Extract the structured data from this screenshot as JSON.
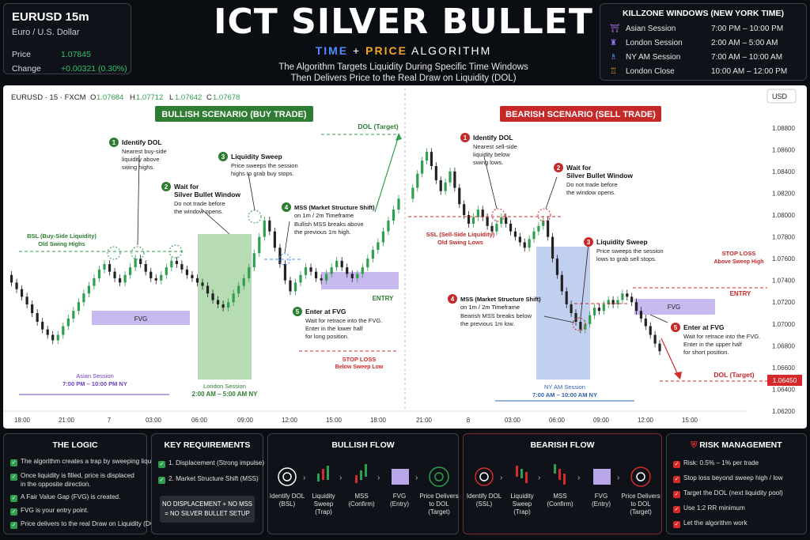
{
  "ticker": {
    "symbol": "EURUSD 15m",
    "name": "Euro / U.S. Dollar",
    "price_label": "Price",
    "price": "1.07845",
    "change_label": "Change",
    "change": "+0.00321 (0.30%)"
  },
  "title": "ICT SILVER BULLET",
  "tagline": {
    "a": "TIME",
    "b": "+",
    "c": "PRICE",
    "d": "ALGORITHM"
  },
  "subline": [
    "The Algorithm Targets Liquidity During Specific Time Windows",
    "Then Delivers Price to the Real Draw on Liquidity (DOL)"
  ],
  "killzones": {
    "title": "KILLZONE WINDOWS (NEW YORK TIME)",
    "items": [
      {
        "name": "Asian Session",
        "time": "7:00 PM – 10:00 PM",
        "icon": "pagoda-icon",
        "color": "#b57cff"
      },
      {
        "name": "London Session",
        "time": "2:00 AM – 5:00 AM",
        "icon": "bigben-icon",
        "color": "#9a7cff"
      },
      {
        "name": "NY AM Session",
        "time": "7:00 AM – 10:00 AM",
        "icon": "liberty-icon",
        "color": "#6aa8ff"
      },
      {
        "name": "London Close",
        "time": "10:00 AM – 12:00 PM",
        "icon": "bridge-icon",
        "color": "#f5a623"
      }
    ]
  },
  "chart_header": {
    "symbol": "EURUSD · 15 · FXCM",
    "o_label": "O",
    "o": "1.07684",
    "h_label": "H",
    "h": "1.07712",
    "l_label": "L",
    "l": "1.07642",
    "c_label": "C",
    "c": "1.07678",
    "currency": "USD"
  },
  "chart_data": {
    "type": "candlestick",
    "y_ticks": [
      "1.08800",
      "1.08600",
      "1.08400",
      "1.08200",
      "1.08000",
      "1.07800",
      "1.07600",
      "1.07400",
      "1.07200",
      "1.07000",
      "1.06800",
      "1.06600",
      "1.06400",
      "1.06200"
    ],
    "x_ticks": [
      "18:00",
      "21:00",
      "7",
      "03:00",
      "06:00",
      "09:00",
      "12:00",
      "15:00",
      "18:00",
      "21:00",
      "8",
      "03:00",
      "06:00",
      "09:00",
      "12:00",
      "15:00"
    ],
    "price_tag": "1.06450",
    "ylim": [
      1.062,
      1.089
    ],
    "bull_path": [
      1.0745,
      1.0738,
      1.0732,
      1.0725,
      1.0718,
      1.071,
      1.0702,
      1.0695,
      1.069,
      1.0685,
      1.069,
      1.0698,
      1.0705,
      1.0712,
      1.072,
      1.0728,
      1.0735,
      1.0742,
      1.075,
      1.0755,
      1.0748,
      1.0742,
      1.0738,
      1.0745,
      1.0752,
      1.076,
      1.0755,
      1.0748,
      1.0742,
      1.074,
      1.0745,
      1.0752,
      1.0758,
      1.0755,
      1.075,
      1.0745,
      1.0742,
      1.0738,
      1.0735,
      1.0728,
      1.0722,
      1.0718,
      1.0715,
      1.072,
      1.0728,
      1.0735,
      1.0742,
      1.0752,
      1.0765,
      1.078,
      1.0795,
      1.0785,
      1.077,
      1.0755,
      1.074,
      1.073,
      1.0738,
      1.0745,
      1.0752,
      1.0748,
      1.0742,
      1.074,
      1.0746,
      1.0752,
      1.0758,
      1.0752,
      1.0746,
      1.0742,
      1.0746,
      1.0752,
      1.076,
      1.0768,
      1.0775,
      1.0785,
      1.0795,
      1.0805,
      1.0815
    ],
    "bear_path": [
      1.0815,
      1.0825,
      1.0838,
      1.085,
      1.0858,
      1.0845,
      1.0832,
      1.0822,
      1.083,
      1.084,
      1.0825,
      1.081,
      1.08,
      1.0792,
      1.0798,
      1.0805,
      1.0798,
      1.079,
      1.0785,
      1.0792,
      1.0798,
      1.0792,
      1.0785,
      1.078,
      1.0775,
      1.077,
      1.0778,
      1.0785,
      1.079,
      1.0795,
      1.078,
      1.076,
      1.0745,
      1.073,
      1.0718,
      1.071,
      1.0702,
      1.0695,
      1.07,
      1.0708,
      1.0715,
      1.0712,
      1.0718,
      1.0722,
      1.0718,
      1.0722,
      1.0728,
      1.0725,
      1.072,
      1.0712,
      1.0705,
      1.0698,
      1.069,
      1.0682,
      1.0675
    ]
  },
  "scenarios": {
    "bull": "BULLISH SCENARIO (BUY TRADE)",
    "bear": "BEARISH SCENARIO (SELL TRADE)"
  },
  "bull_annotations": {
    "s1": {
      "n": "1",
      "title": "Identify DOL",
      "text": [
        "Nearest buy-side",
        "liquidity above",
        "swing highs."
      ]
    },
    "s2": {
      "n": "2",
      "title": "Wait for",
      "title2": "Silver Bullet Window",
      "text": [
        "Do not trade before",
        "the window opens."
      ]
    },
    "s3": {
      "n": "3",
      "title": "Liquidity Sweep",
      "text": [
        "Price sweeps the session",
        "highs to grab buy stops."
      ]
    },
    "s4": {
      "n": "4",
      "title": "MSS (Market Structure Shift)",
      "title2": "on 1m / 2m Timeframe",
      "text": [
        "Bullish MSS breaks above",
        "the previous 1m high."
      ]
    },
    "s5": {
      "n": "5",
      "title": "Enter at FVG",
      "text": [
        "Wait for retrace into the FVG.",
        "Enter in the lower half",
        "for long position."
      ]
    },
    "bsl": "BSL (Buy-Side Liquidity)",
    "bsl2": "Old Swing Highs",
    "fvg": "FVG",
    "dol": "DOL (Target)",
    "entry": "ENTRY",
    "stop": "STOP LOSS",
    "stop2": "Below Sweep Low",
    "asian": "Asian Session",
    "asian_t": "7:00 PM – 10:00 PM NY",
    "london": "London Session",
    "london_t": "2:00 AM – 5:00 AM NY"
  },
  "bear_annotations": {
    "s1": {
      "n": "1",
      "title": "Identify DOL",
      "text": [
        "Nearest sell-side",
        "liquidity below",
        "swing lows."
      ]
    },
    "s2": {
      "n": "2",
      "title": "Wait for",
      "title2": "Silver Bullet Window",
      "text": [
        "Do not trade before",
        "the window opens."
      ]
    },
    "s3": {
      "n": "3",
      "title": "Liquidity Sweep",
      "text": [
        "Price sweeps the session",
        "lows to grab sell stops."
      ]
    },
    "s4": {
      "n": "4",
      "title": "MSS (Market Structure Shift)",
      "title2": "on 1m / 2m Timeframe",
      "text": [
        "Bearish MSS breaks below",
        "the previous 1m low."
      ]
    },
    "s5": {
      "n": "5",
      "title": "Enter at FVG",
      "text": [
        "Wait for retrace into the FVG.",
        "Enter in the upper half",
        "for short position."
      ]
    },
    "ssl": "SSL (Sell-Side Liquidity)",
    "ssl2": "Old Swing Lows",
    "fvg": "FVG",
    "dol": "DOL (Target)",
    "entry": "ENTRY",
    "stop": "STOP LOSS",
    "stop2": "Above Sweep High",
    "ny": "NY AM Session",
    "ny_t": "7:00 AM – 10:00 AM NY"
  },
  "logic": {
    "title": "THE LOGIC",
    "items": [
      "The algorithm creates a trap by sweeping liquidity.",
      "Once liquidity is filled, price is displaced",
      "in the opposite direction.",
      "A Fair Value Gap (FVG) is created.",
      "FVG is your entry point.",
      "Price delivers to the real Draw on Liquidity (DOL)."
    ]
  },
  "key": {
    "title": "KEY REQUIREMENTS",
    "items": [
      "1. Displacement (Strong impulse)",
      "2. Market Structure Shift (MSS)"
    ],
    "warn": [
      "NO DISPLACEMENT + NO MSS",
      "= NO SILVER BULLET SETUP"
    ]
  },
  "bull_flow": {
    "title": "BULLISH FLOW",
    "steps": [
      [
        "Identify DOL",
        "(BSL)"
      ],
      [
        "Liquidity",
        "Sweep",
        "(Trap)"
      ],
      [
        "MSS",
        "(Confirm)"
      ],
      [
        "FVG",
        "(Entry)"
      ],
      [
        "Price Delivers",
        "to DOL",
        "(Target)"
      ]
    ]
  },
  "bear_flow": {
    "title": "BEARISH FLOW",
    "steps": [
      [
        "Identify DOL",
        "(SSL)"
      ],
      [
        "Liquidity",
        "Sweep",
        "(Trap)"
      ],
      [
        "MSS",
        "(Confirm)"
      ],
      [
        "FVG",
        "(Entry)"
      ],
      [
        "Price Delivers",
        "to DOL",
        "(Target)"
      ]
    ]
  },
  "risk": {
    "title": "RISK MANAGEMENT",
    "items": [
      "Risk: 0.5% – 1% per trade",
      "Stop loss beyond sweep high / low",
      "Target the DOL (next liquidity pool)",
      "Use 1:2 RR minimum",
      "Let the algorithm work"
    ]
  },
  "colors": {
    "green": "#2e9e4f",
    "red": "#d62a2a",
    "purple": "#b9a6e8",
    "blue": "#9fb7e6",
    "greenzone": "#9fcf9a"
  }
}
